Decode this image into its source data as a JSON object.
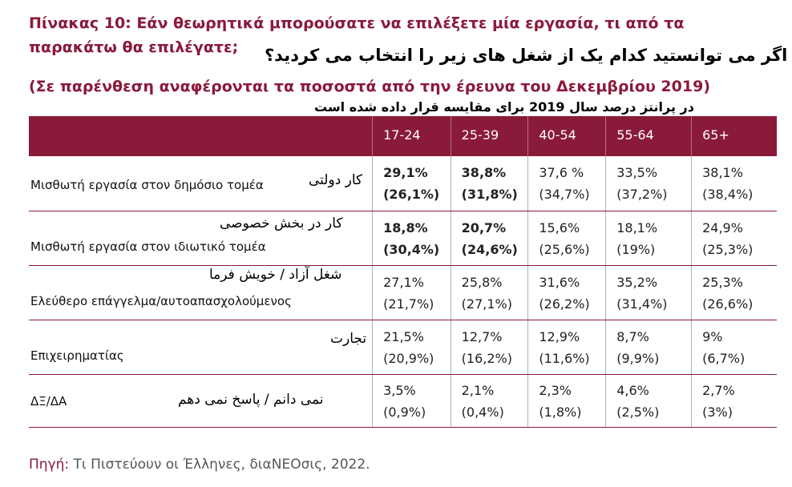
{
  "title": {
    "label": "Πίνακας 10:",
    "text_line1": "Εάν θεωρητικά μπορούσατε να επιλέξετε μία εργασία, τι από τα",
    "text_line2": "παρακάτω θα επιλέγατε;",
    "persian_question": "اگر می توانستید کدام یک از شغل های زیر را انتخاب می کردید؟",
    "subtitle": "(Σε παρένθεση αναφέρονται τα ποσοστά από την έρευνα του Δεκεμβρίου 2019)",
    "persian_subtitle": "در پرانتز درصد سال 2019 برای مقایسه قرار داده شده است"
  },
  "table": {
    "headers": [
      "17-24",
      "25-39",
      "40-54",
      "55-64",
      "65+"
    ],
    "rows": [
      {
        "category": "Μισθωτή εργασία στον δημόσιο τομέα",
        "persian": "کار دولتی",
        "values": [
          {
            "now": "29,1%",
            "prev": "(26,1%)"
          },
          {
            "now": "38,8%",
            "prev": "(31,8%)"
          },
          {
            "now": "37,6 %",
            "prev": "(34,7%)"
          },
          {
            "now": "33,5%",
            "prev": "(37,2%)"
          },
          {
            "now": "38,1%",
            "prev": "(38,4%)"
          }
        ]
      },
      {
        "category": "Μισθωτή εργασία στον ιδιωτικό τομέα",
        "persian": "کار در بخش خصوصی",
        "values": [
          {
            "now": "18,8%",
            "prev": "(30,4%)"
          },
          {
            "now": "20,7%",
            "prev": "(24,6%)"
          },
          {
            "now": "15,6%",
            "prev": "(25,6%)"
          },
          {
            "now": "18,1%",
            "prev": "(19%)"
          },
          {
            "now": "24,9%",
            "prev": "(25,3%)"
          }
        ]
      },
      {
        "category": "Ελεύθερο επάγγελμα/αυτοαπασχολούμενος",
        "persian": "شغل آزاد / خویش فرما",
        "values": [
          {
            "now": "27,1%",
            "prev": "(21,7%)"
          },
          {
            "now": "25,8%",
            "prev": "(27,1%)"
          },
          {
            "now": "31,6%",
            "prev": "(26,2%)"
          },
          {
            "now": "35,2%",
            "prev": "(31,4%)"
          },
          {
            "now": "25,3%",
            "prev": "(26,6%)"
          }
        ]
      },
      {
        "category": "Επιχειρηματίας",
        "persian": "تجارت",
        "values": [
          {
            "now": "21,5%",
            "prev": "(20,9%)"
          },
          {
            "now": "12,7%",
            "prev": "(16,2%)"
          },
          {
            "now": "12,9%",
            "prev": "(11,6%)"
          },
          {
            "now": "8,7%",
            "prev": "(9,9%)"
          },
          {
            "now": "9%",
            "prev": "(6,7%)"
          }
        ]
      },
      {
        "category": "ΔΞ/ΔΑ",
        "persian": "نمی دانم / پاسخ نمی دهم",
        "values": [
          {
            "now": "3,5%",
            "prev": "(0,9%)"
          },
          {
            "now": "2,1%",
            "prev": "(0,4%)"
          },
          {
            "now": "2,3%",
            "prev": "(1,8%)"
          },
          {
            "now": "4,6%",
            "prev": "(2,5%)"
          },
          {
            "now": "2,7%",
            "prev": "(3%)"
          }
        ]
      }
    ]
  },
  "footer": {
    "label": "Πηγή:",
    "text": "Τι Πιστεύουν οι Έλληνες, διαΝΕΟσις, 2022."
  },
  "colors": {
    "accent": "#8a1a3a",
    "header_text": "#ffffff"
  }
}
